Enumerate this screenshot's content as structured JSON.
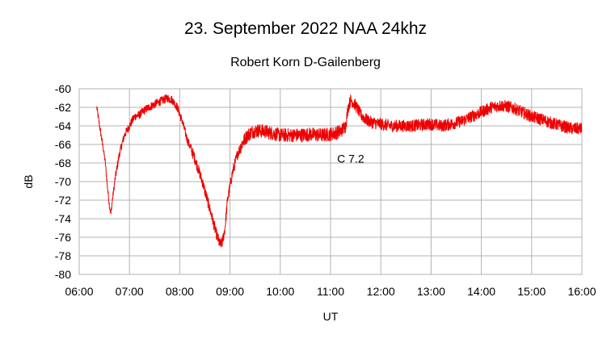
{
  "chart_data": {
    "type": "line",
    "title": "23. September 2022  NAA 24khz",
    "subtitle": "Robert Korn D-Gailenberg",
    "xlabel": "UT",
    "ylabel": "dB",
    "xlim": [
      6,
      16
    ],
    "ylim": [
      -80,
      -60
    ],
    "x_tick_labels": [
      "06:00",
      "07:00",
      "08:00",
      "09:00",
      "10:00",
      "11:00",
      "12:00",
      "13:00",
      "14:00",
      "15:00",
      "16:00"
    ],
    "y_tick_labels": [
      "-60",
      "-62",
      "-64",
      "-66",
      "-68",
      "-70",
      "-72",
      "-74",
      "-76",
      "-78",
      "-80"
    ],
    "grid": true,
    "legend": "none",
    "series": [
      {
        "name": "NAA 24khz",
        "color": "#ee0000",
        "x": [
          6.35,
          6.42,
          6.48,
          6.52,
          6.56,
          6.6,
          6.63,
          6.66,
          6.72,
          6.8,
          6.9,
          7.0,
          7.1,
          7.2,
          7.3,
          7.45,
          7.6,
          7.75,
          7.85,
          7.95,
          8.05,
          8.15,
          8.3,
          8.45,
          8.55,
          8.65,
          8.72,
          8.8,
          8.85,
          8.9,
          8.95,
          9.05,
          9.15,
          9.25,
          9.35,
          9.45,
          9.55,
          9.7,
          9.85,
          10.0,
          10.2,
          10.4,
          10.6,
          10.8,
          11.0,
          11.2,
          11.3,
          11.35,
          11.4,
          11.5,
          11.6,
          11.7,
          11.8,
          12.0,
          12.2,
          12.4,
          12.6,
          12.8,
          13.0,
          13.2,
          13.4,
          13.6,
          13.8,
          14.0,
          14.2,
          14.4,
          14.6,
          14.8,
          15.0,
          15.2,
          15.4,
          15.6,
          15.8,
          16.0
        ],
        "y": [
          -62.0,
          -64.5,
          -66.5,
          -68.0,
          -70.5,
          -72.5,
          -73.5,
          -72.0,
          -69.5,
          -67.0,
          -65.0,
          -64.0,
          -63.0,
          -62.8,
          -62.3,
          -61.8,
          -61.4,
          -61.0,
          -61.2,
          -62.0,
          -63.5,
          -65.5,
          -67.5,
          -70.0,
          -72.0,
          -74.0,
          -75.5,
          -76.8,
          -76.5,
          -75.0,
          -72.0,
          -69.0,
          -67.0,
          -65.8,
          -65.0,
          -64.6,
          -64.5,
          -64.6,
          -64.8,
          -65.0,
          -65.0,
          -65.0,
          -64.9,
          -65.0,
          -64.9,
          -64.6,
          -64.0,
          -62.0,
          -61.2,
          -61.8,
          -62.8,
          -63.3,
          -63.6,
          -63.8,
          -64.0,
          -64.0,
          -64.0,
          -63.9,
          -63.8,
          -64.0,
          -63.8,
          -63.5,
          -63.0,
          -62.5,
          -62.0,
          -61.8,
          -62.0,
          -62.5,
          -63.0,
          -63.3,
          -63.7,
          -64.0,
          -64.3,
          -64.3
        ]
      }
    ],
    "annotations": [
      {
        "text": "C 7.2",
        "x": 11.4,
        "y": -67.5
      }
    ],
    "plot_background": "#ffffff",
    "grid_color": "#b3b3b3"
  }
}
